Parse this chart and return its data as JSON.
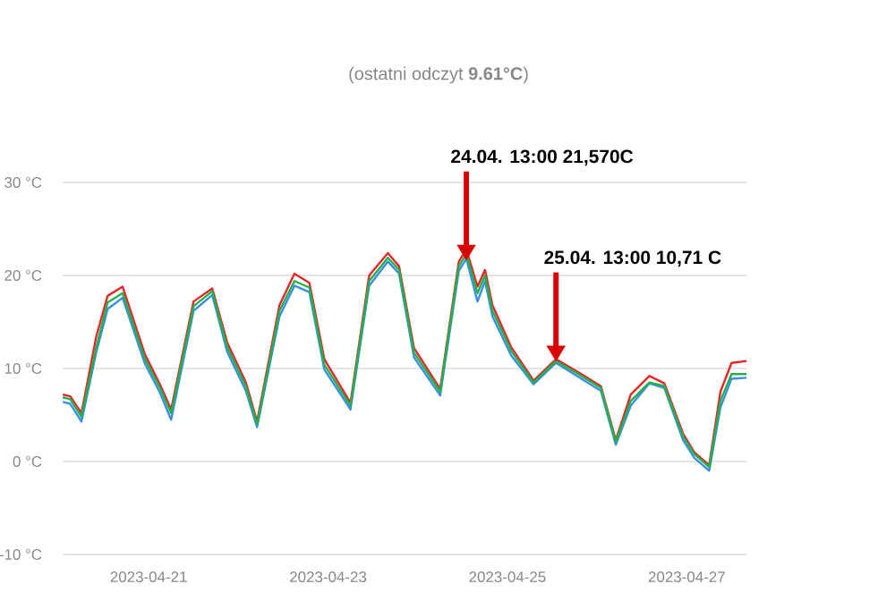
{
  "chart_data": {
    "type": "line",
    "subtitle": "(ostatni odczyt **9.61°C**)",
    "x": [
      "2023-04-20T01:00",
      "2023-04-20T03:00",
      "2023-04-20T06:00",
      "2023-04-20T10:00",
      "2023-04-20T13:00",
      "2023-04-20T17:00",
      "2023-04-20T23:00",
      "2023-04-21T03:00",
      "2023-04-21T06:00",
      "2023-04-21T12:00",
      "2023-04-21T17:00",
      "2023-04-21T21:00",
      "2023-04-22T02:00",
      "2023-04-22T05:00",
      "2023-04-22T11:00",
      "2023-04-22T15:00",
      "2023-04-22T19:00",
      "2023-04-22T23:00",
      "2023-04-23T06:00",
      "2023-04-23T11:00",
      "2023-04-23T16:00",
      "2023-04-23T19:00",
      "2023-04-23T23:00",
      "2023-04-24T06:00",
      "2023-04-24T11:00",
      "2023-04-24T13:00",
      "2023-04-24T16:00",
      "2023-04-24T18:00",
      "2023-04-24T20:00",
      "2023-04-25T01:00",
      "2023-04-25T07:00",
      "2023-04-25T13:00",
      "2023-04-25T19:00",
      "2023-04-26T01:00",
      "2023-04-26T05:00",
      "2023-04-26T09:00",
      "2023-04-26T14:00",
      "2023-04-26T18:00",
      "2023-04-26T23:00",
      "2023-04-27T02:00",
      "2023-04-27T06:00",
      "2023-04-27T09:00",
      "2023-04-27T12:00",
      "2023-04-27T16:00"
    ],
    "series": [
      {
        "color": "#3a8ee6",
        "values": [
          6.4,
          6.2,
          4.3,
          11.8,
          16.4,
          17.6,
          10.5,
          7.4,
          4.5,
          16.2,
          17.9,
          11.8,
          7.6,
          3.7,
          15.6,
          18.9,
          18.2,
          9.9,
          5.6,
          18.9,
          21.5,
          20.2,
          11.2,
          7.1,
          20.5,
          21.8,
          17.2,
          19.4,
          15.6,
          11.4,
          8.3,
          10.6,
          9.1,
          7.6,
          1.8,
          6.0,
          8.4,
          7.9,
          2.3,
          0.4,
          -1.0,
          5.8,
          8.9,
          9.0
        ]
      },
      {
        "color": "#e8262a",
        "values": [
          7.2,
          7.0,
          5.2,
          13.5,
          17.8,
          18.8,
          11.5,
          8.3,
          5.6,
          17.2,
          18.6,
          12.8,
          8.5,
          4.3,
          16.8,
          20.2,
          19.2,
          11.0,
          6.3,
          20.0,
          22.4,
          21.0,
          12.2,
          7.8,
          21.5,
          22.8,
          18.8,
          20.6,
          16.8,
          12.3,
          8.7,
          11.0,
          9.6,
          8.1,
          2.3,
          7.2,
          9.2,
          8.4,
          3.0,
          1.0,
          -0.4,
          7.5,
          10.6,
          10.8
        ]
      },
      {
        "color": "#22b24c",
        "values": [
          6.9,
          6.7,
          4.8,
          12.3,
          17.1,
          18.1,
          11.0,
          7.9,
          5.2,
          16.7,
          18.3,
          12.3,
          8.1,
          4.0,
          16.2,
          19.4,
          18.7,
          10.4,
          6.0,
          19.4,
          21.9,
          20.6,
          11.7,
          7.5,
          21.0,
          22.3,
          18.1,
          20.0,
          16.2,
          11.9,
          8.5,
          10.8,
          9.4,
          7.9,
          2.1,
          6.5,
          8.5,
          8.1,
          2.7,
          0.8,
          -0.6,
          6.5,
          9.4,
          9.4
        ]
      }
    ],
    "xlim": [
      "2023-04-20T01:00",
      "2023-04-27T16:00"
    ],
    "xticks": [
      "2023-04-21",
      "2023-04-23",
      "2023-04-25",
      "2023-04-27"
    ],
    "ylim": [
      -10,
      30
    ],
    "yticks": [
      {
        "value": -10,
        "label": "-10 °C"
      },
      {
        "value": 0,
        "label": "0 °C"
      },
      {
        "value": 10,
        "label": "10 °C"
      },
      {
        "value": 20,
        "label": "20 °C"
      },
      {
        "value": 30,
        "label": "30 °C"
      }
    ],
    "grid": "y",
    "marker": "none",
    "line_style": "solid",
    "annotations": [
      {
        "text": "24.04. 13:00 21,570C",
        "x": "2023-04-24T13:00",
        "y": 21.57
      },
      {
        "text": "25.04. 13:00 10,71 C",
        "x": "2023-04-25T13:00",
        "y": 10.71
      }
    ]
  }
}
